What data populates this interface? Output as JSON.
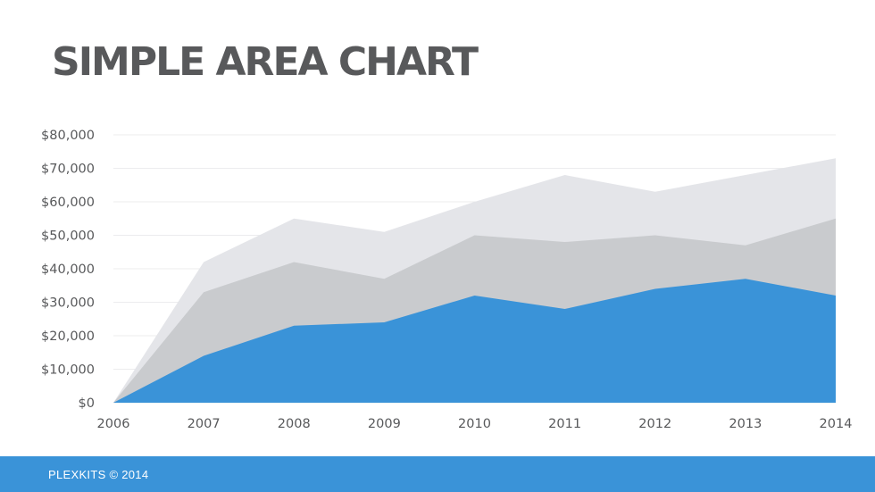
{
  "page": {
    "title": "SIMPLE AREA CHART"
  },
  "footer": {
    "text": "PLEXKITS © 2014"
  },
  "chart_data": {
    "type": "area",
    "stacked": false,
    "title": "SIMPLE AREA CHART",
    "xlabel": "",
    "ylabel": "",
    "x": [
      "2006",
      "2007",
      "2008",
      "2009",
      "2010",
      "2011",
      "2012",
      "2013",
      "2014"
    ],
    "ylim": [
      0,
      80000
    ],
    "yticks": [
      0,
      10000,
      20000,
      30000,
      40000,
      50000,
      60000,
      70000,
      80000
    ],
    "ytick_labels": [
      "$0",
      "$10,000",
      "$20,000",
      "$30,000",
      "$40,000",
      "$50,000",
      "$60,000",
      "$70,000",
      "$80,000"
    ],
    "grid": true,
    "legend": "none",
    "series": [
      {
        "values": [
          0,
          42000,
          55000,
          51000,
          60000,
          68000,
          63000,
          68000,
          73000
        ],
        "color": "#e4e5e9"
      },
      {
        "values": [
          0,
          33000,
          42000,
          37000,
          50000,
          48000,
          50000,
          47000,
          55000
        ],
        "color": "#c9cbce"
      },
      {
        "values": [
          0,
          14000,
          23000,
          24000,
          32000,
          28000,
          34000,
          37000,
          32000
        ],
        "color": "#3a93d8"
      }
    ]
  }
}
